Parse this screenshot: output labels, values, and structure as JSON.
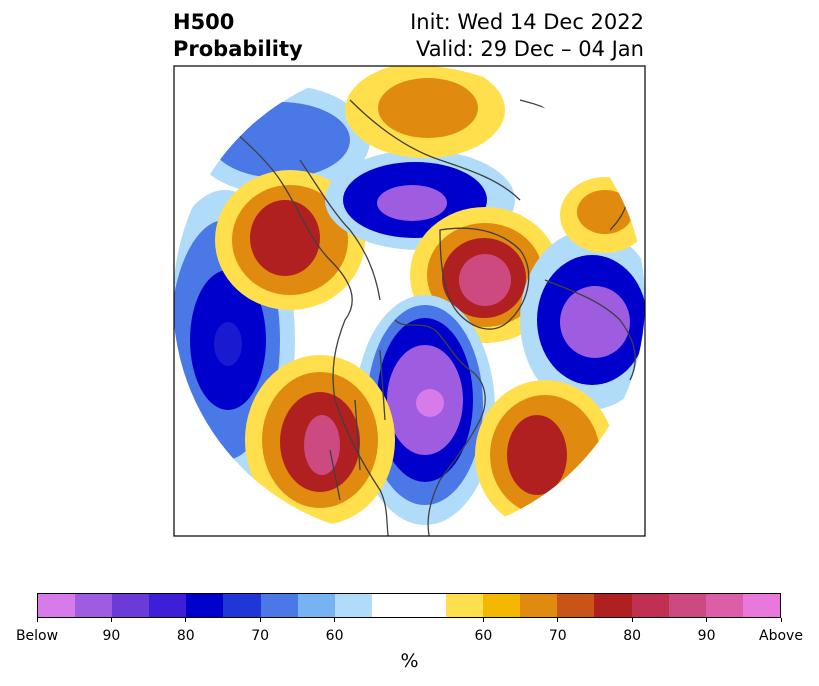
{
  "title": {
    "left_line1": "H500",
    "left_line2": "Probability",
    "right_line1": "Init: Wed 14 Dec 2022",
    "right_line2": "Valid: 29 Dec – 04 Jan"
  },
  "colorbar": {
    "colors": [
      "#d77aea",
      "#9e5ce0",
      "#6a3bd9",
      "#3c1fd6",
      "#0000cc",
      "#2136d6",
      "#4a78e6",
      "#77b2f2",
      "#b0dcfa",
      "#ffffff",
      "#ffffff",
      "#ffe04c",
      "#f5b800",
      "#e08a10",
      "#c85418",
      "#b02020",
      "#c03050",
      "#cc4a80",
      "#dc5ea8",
      "#e878dc"
    ],
    "tick_labels": [
      "Below",
      "90",
      "80",
      "70",
      "60",
      "60",
      "70",
      "80",
      "90",
      "Above"
    ],
    "unit_label": "%"
  },
  "map_colors": {
    "below_light": "#b0dcfa",
    "below_mid": "#4a78e6",
    "below_deep": "#0000cc",
    "below_core": "#9e5ce0",
    "above_light": "#ffe04c",
    "above_mid": "#e08a10",
    "above_deep": "#b02020",
    "above_core": "#cc4a80",
    "coastline": "#404040"
  }
}
